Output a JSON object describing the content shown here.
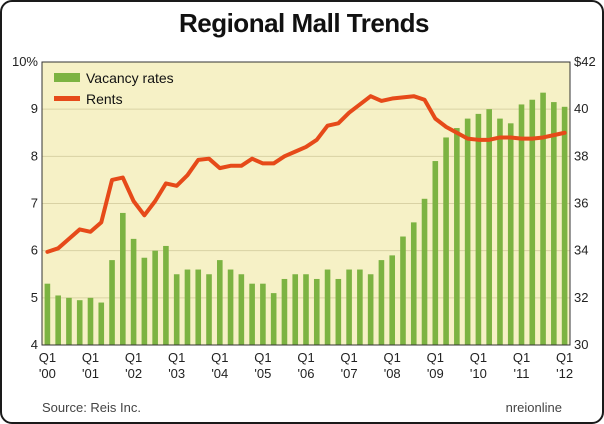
{
  "title": "Regional Mall Trends",
  "source": "Source: Reis Inc.",
  "brand": "nreionline",
  "chart_data": {
    "type": "bar+line",
    "title": "Regional Mall Trends",
    "left_axis": {
      "ylim": [
        4,
        10
      ],
      "ticks": [
        "10%",
        "9",
        "8",
        "7",
        "6",
        "5",
        "4"
      ],
      "tick_values": [
        10,
        9,
        8,
        7,
        6,
        5,
        4
      ]
    },
    "right_axis": {
      "ylim": [
        30,
        42
      ],
      "ticks": [
        "$42",
        "40",
        "38",
        "36",
        "34",
        "32",
        "30"
      ],
      "tick_values": [
        42,
        40,
        38,
        36,
        34,
        32,
        30
      ]
    },
    "x_ticks": [
      {
        "q": "Q1",
        "y": "'00"
      },
      {
        "q": "Q1",
        "y": "'01"
      },
      {
        "q": "Q1",
        "y": "'02"
      },
      {
        "q": "Q1",
        "y": "'03"
      },
      {
        "q": "Q1",
        "y": "'04"
      },
      {
        "q": "Q1",
        "y": "'05"
      },
      {
        "q": "Q1",
        "y": "'06"
      },
      {
        "q": "Q1",
        "y": "'07"
      },
      {
        "q": "Q1",
        "y": "'08"
      },
      {
        "q": "Q1",
        "y": "'09"
      },
      {
        "q": "Q1",
        "y": "'10"
      },
      {
        "q": "Q1",
        "y": "'11"
      },
      {
        "q": "Q1",
        "y": "'12"
      }
    ],
    "legend": [
      {
        "name": "Vacancy rates",
        "color": "#7cb342"
      },
      {
        "name": "Rents",
        "color": "#e64a19"
      }
    ],
    "series": [
      {
        "name": "Vacancy rates",
        "kind": "bar",
        "axis": "left",
        "color": "#7cb342",
        "values": [
          5.3,
          5.05,
          5.0,
          4.95,
          5.0,
          4.9,
          5.8,
          6.8,
          6.25,
          5.85,
          6.0,
          6.1,
          5.5,
          5.6,
          5.6,
          5.5,
          5.8,
          5.6,
          5.5,
          5.3,
          5.3,
          5.1,
          5.4,
          5.5,
          5.5,
          5.4,
          5.6,
          5.4,
          5.6,
          5.6,
          5.5,
          5.8,
          5.9,
          6.3,
          6.6,
          7.1,
          7.9,
          8.4,
          8.6,
          8.8,
          8.9,
          9.0,
          8.8,
          8.7,
          9.1,
          9.2,
          9.35,
          9.15,
          9.05
        ]
      },
      {
        "name": "Rents",
        "kind": "line",
        "axis": "right",
        "color": "#e64a19",
        "values": [
          33.95,
          34.1,
          34.5,
          34.9,
          34.8,
          35.2,
          37.0,
          37.1,
          36.1,
          35.5,
          36.1,
          36.85,
          36.75,
          37.2,
          37.85,
          37.9,
          37.5,
          37.6,
          37.6,
          37.9,
          37.7,
          37.7,
          38.0,
          38.2,
          38.4,
          38.7,
          39.3,
          39.4,
          39.85,
          40.2,
          40.55,
          40.35,
          40.45,
          40.5,
          40.55,
          40.4,
          39.6,
          39.25,
          39.0,
          38.75,
          38.7,
          38.7,
          38.8,
          38.8,
          38.75,
          38.75,
          38.8,
          38.9,
          39.0
        ]
      }
    ],
    "grid": true
  }
}
